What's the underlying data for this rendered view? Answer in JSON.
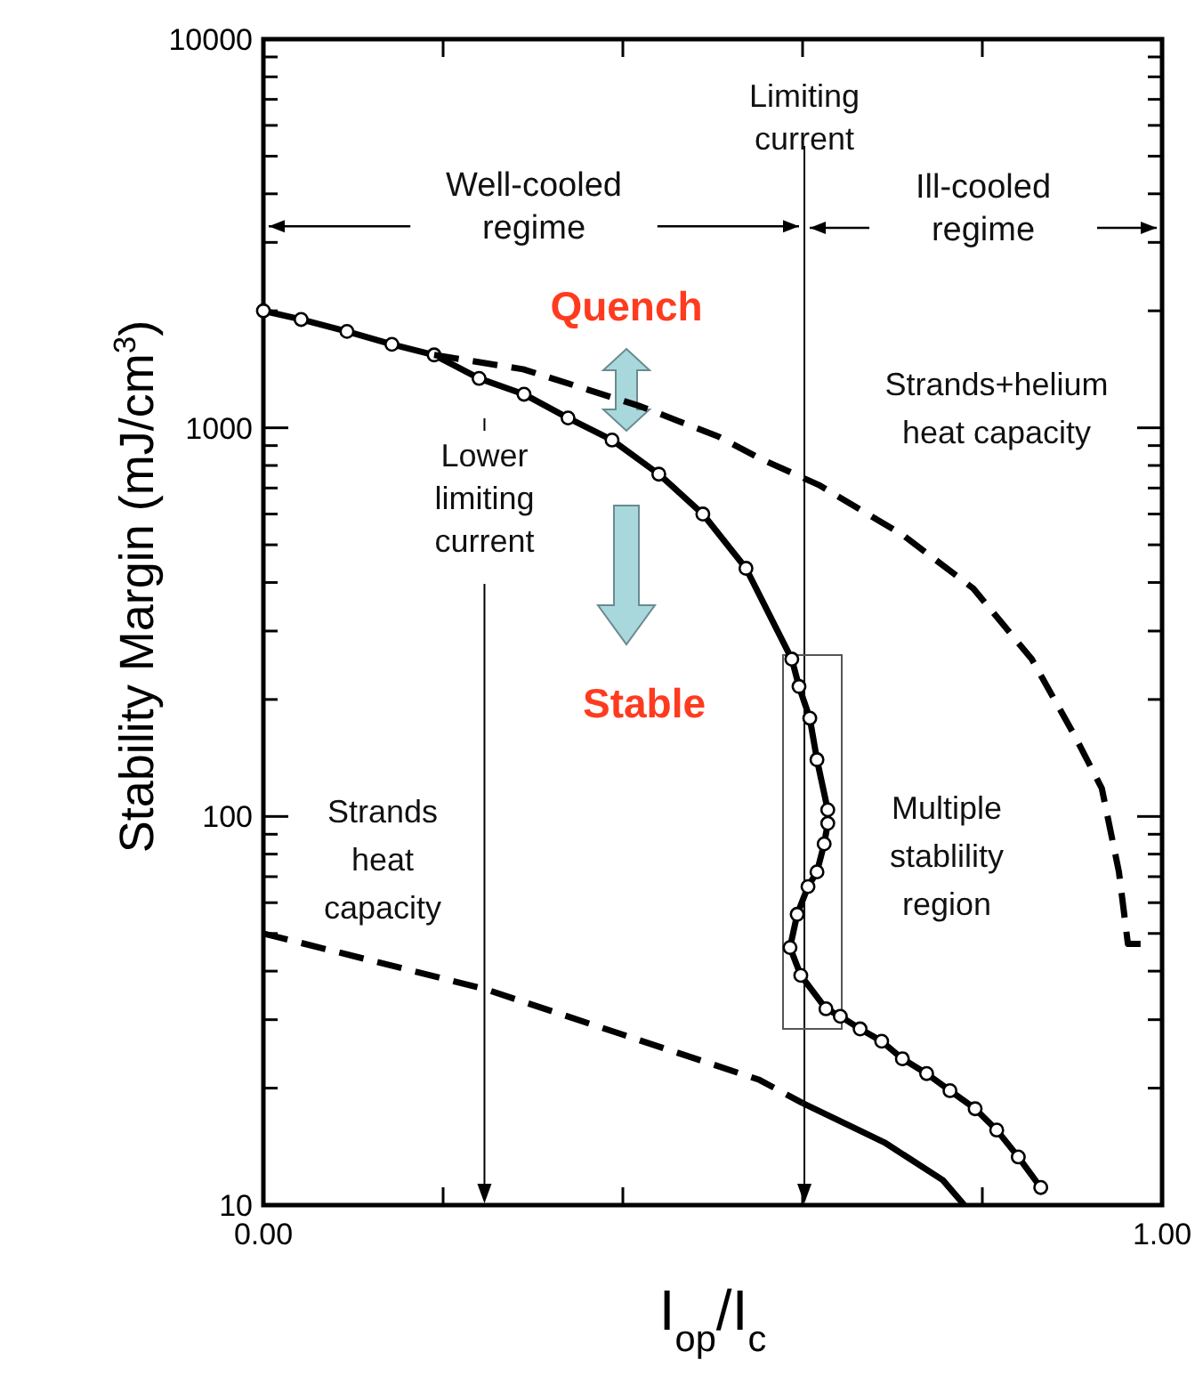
{
  "chart_data": {
    "type": "line",
    "xlabel": "I$_{op}$/I$_{c}$",
    "ylabel": "Stability Margin (mJ/cm$^{3}$)",
    "log": "y",
    "xlim": [
      0,
      1
    ],
    "ylim": [
      10,
      10000
    ],
    "xticks": [
      {
        "value": 0,
        "label": "0.00"
      },
      {
        "value": 0.2,
        "label": null
      },
      {
        "value": 0.4,
        "label": null
      },
      {
        "value": 0.6,
        "label": null
      },
      {
        "value": 0.8,
        "label": null
      },
      {
        "value": 1,
        "label": "1.00"
      }
    ],
    "yticks": [
      10,
      {
        "value": 20,
        "label": null
      },
      {
        "value": 30,
        "label": null
      },
      {
        "value": 40,
        "label": null
      },
      {
        "value": 50,
        "label": null
      },
      {
        "value": 60,
        "label": null
      },
      {
        "value": 70,
        "label": null
      },
      {
        "value": 80,
        "label": null
      },
      {
        "value": 90,
        "label": null
      },
      100,
      {
        "value": 200,
        "label": null
      },
      {
        "value": 300,
        "label": null
      },
      {
        "value": 400,
        "label": null
      },
      {
        "value": 500,
        "label": null
      },
      {
        "value": 600,
        "label": null
      },
      {
        "value": 700,
        "label": null
      },
      {
        "value": 800,
        "label": null
      },
      {
        "value": 900,
        "label": null
      },
      1000,
      {
        "value": 2000,
        "label": null
      },
      {
        "value": 3000,
        "label": null
      },
      {
        "value": 4000,
        "label": null
      },
      {
        "value": 5000,
        "label": null
      },
      {
        "value": 6000,
        "label": null
      },
      {
        "value": 7000,
        "label": null
      },
      {
        "value": 8000,
        "label": null
      },
      {
        "value": 9000,
        "label": null
      },
      10000
    ],
    "series": [
      {
        "color": "#000000",
        "line_style": "solid",
        "marker": "circle",
        "x": [
          0,
          0.042,
          0.093,
          0.143,
          0.19,
          0.24,
          0.29,
          0.339,
          0.388,
          0.44,
          0.489,
          0.537,
          0.588,
          0.596,
          0.608,
          0.616,
          0.628,
          0.628,
          0.624,
          0.616,
          0.606,
          0.594,
          0.586,
          0.598,
          0.626,
          0.642,
          0.664,
          0.688,
          0.711,
          0.738,
          0.764,
          0.792,
          0.816,
          0.84,
          0.865
        ],
        "values": [
          2000,
          1900,
          1770,
          1640,
          1540,
          1340,
          1220,
          1060,
          930,
          760,
          600,
          435,
          254,
          216,
          179,
          140,
          104,
          96,
          85,
          72,
          66,
          56,
          46,
          39,
          32,
          30.6,
          28.4,
          26.4,
          23.8,
          21.8,
          19.7,
          17.7,
          15.6,
          13.3,
          11.1
        ]
      },
      {
        "name": "Strands+helium heat capacity",
        "color": "#000000",
        "line_style": "dashed",
        "marker": "none",
        "x": [
          0.19,
          0.289,
          0.42,
          0.507,
          0.552,
          0.618,
          0.711,
          0.79,
          0.855,
          0.903,
          0.933,
          0.952,
          0.962,
          0.99
        ],
        "values": [
          1540,
          1415,
          1135,
          948,
          835,
          713,
          531,
          386,
          254,
          161,
          118,
          72,
          47,
          47
        ]
      },
      {
        "name": "Strands heat capacity",
        "color": "#000000",
        "line_style": "dashed",
        "marker": "none",
        "x": [
          0,
          0.246,
          0.552,
          0.6
        ],
        "values": [
          50,
          36,
          21,
          18.3
        ]
      },
      {
        "color": "#000000",
        "line_style": "solid",
        "marker": "none",
        "x": [
          0.6,
          0.691,
          0.756,
          0.78
        ],
        "values": [
          18.3,
          14.5,
          11.6,
          10
        ]
      }
    ],
    "ref_lines": [
      {
        "axis": "x",
        "value": 0.246,
        "label": "Lower limiting current"
      },
      {
        "axis": "x",
        "value": 0.602,
        "label": "Limiting current"
      }
    ],
    "annotations": [
      "Quench",
      "Stable",
      "Multiple stablility region",
      {
        "text": "Well-cooled regime",
        "x": 0.602,
        "y": 3300
      },
      "Ill-cooled regime"
    ]
  }
}
